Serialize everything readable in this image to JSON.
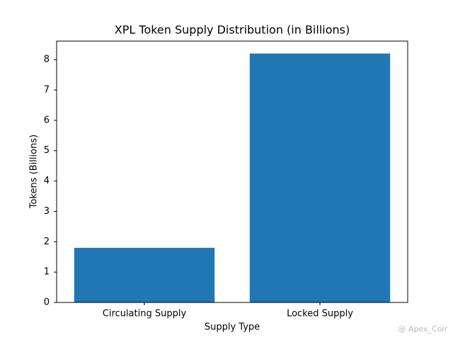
{
  "chart_data": {
    "type": "bar",
    "title": "XPL Token Supply Distribution (in Billions)",
    "x_label": "Supply Type",
    "y_label": "Tokens (Billions)",
    "categories": [
      "Circulating Supply",
      "Locked Supply"
    ],
    "values": [
      1.8,
      8.2
    ],
    "color": "#1f77b4",
    "ylim": [
      0,
      8.61
    ],
    "yticks": [
      0,
      1,
      2,
      3,
      4,
      5,
      6,
      7,
      8
    ],
    "grid": false
  },
  "watermark": "@ Apex_Coir"
}
